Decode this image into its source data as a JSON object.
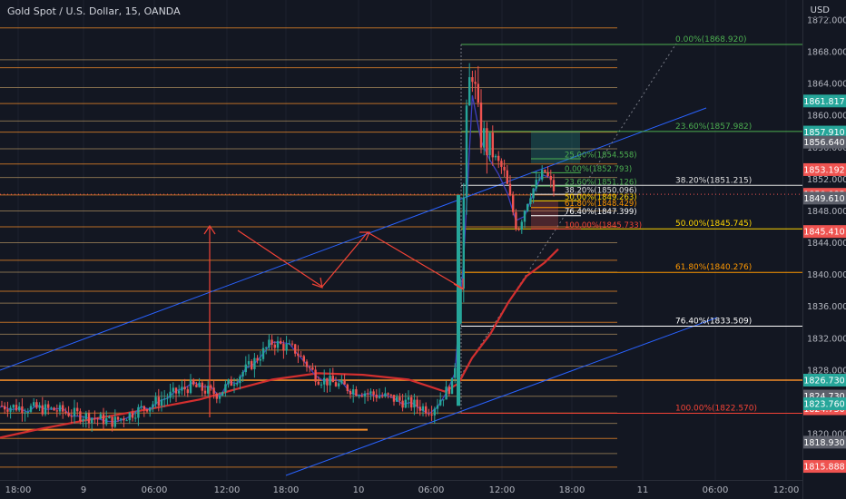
{
  "header": {
    "title": "Gold Spot / U.S. Dollar, 15, OANDA",
    "currency": "USD"
  },
  "colors": {
    "bg": "#131722",
    "grid": "#1e222d",
    "axis_text": "#b2b5be",
    "orange": "#f28c28",
    "tan": "#a78a5c",
    "green": "#26a69a",
    "red": "#ef5350",
    "blue_line": "#2962ff",
    "ema_red": "#d32f2f",
    "ema_blue": "#3f3fbf",
    "arrow": "#f44336",
    "fib_green": "#4caf50",
    "fib_yellow": "#ffd600",
    "fib_white": "#e0e0e0",
    "fib_red": "#f44336",
    "fib_orange": "#ff9800"
  },
  "chart_data": {
    "type": "candlestick",
    "title": "Gold Spot / U.S. Dollar, 15, OANDA",
    "ylabel": "USD",
    "ylim": [
      1814,
      1874
    ],
    "y_ticks": [
      1872.0,
      1868.0,
      1864.0,
      1860.0,
      1856.0,
      1852.0,
      1848.0,
      1844.0,
      1840.0,
      1836.0,
      1832.0,
      1828.0,
      1824.0,
      1820.0
    ],
    "x_tick_labels": [
      "18:00",
      "9",
      "06:00",
      "12:00",
      "18:00",
      "10",
      "06:00",
      "12:00",
      "18:00",
      "11",
      "06:00",
      "12:00"
    ],
    "price_tags": [
      {
        "label": "1861.817",
        "value": 1861.817,
        "color": "#26a69a"
      },
      {
        "label": "1857.910",
        "value": 1857.91,
        "color": "#26a69a"
      },
      {
        "label": "1856.640",
        "value": 1856.64,
        "color": "#5d606b"
      },
      {
        "label": "1853.192",
        "value": 1853.192,
        "color": "#ef5350"
      },
      {
        "label": "1850.085",
        "value": 1850.085,
        "color": "#ef5350"
      },
      {
        "label": "1849.610",
        "value": 1849.61,
        "color": "#5d606b"
      },
      {
        "label": "1845.410",
        "value": 1845.41,
        "color": "#ef5350"
      },
      {
        "label": "1826.730",
        "value": 1826.73,
        "color": "#26a69a"
      },
      {
        "label": "1824.730",
        "value": 1824.73,
        "color": "#5d606b"
      },
      {
        "label": "1824.730",
        "value": 1824.73,
        "color": "#ef5350"
      },
      {
        "label": "1823.760",
        "value": 1823.76,
        "color": "#26a69a"
      },
      {
        "label": "1818.930",
        "value": 1818.93,
        "color": "#5d606b"
      },
      {
        "label": "1815.888",
        "value": 1815.888,
        "color": "#ef5350"
      }
    ],
    "fib_large": [
      {
        "label": "0.00%(1868.920)",
        "value": 1868.92,
        "color": "#4caf50"
      },
      {
        "label": "23.60%(1857.982)",
        "value": 1857.982,
        "color": "#4caf50"
      },
      {
        "label": "38.20%(1851.215)",
        "value": 1851.215,
        "color": "#e0e0e0"
      },
      {
        "label": "50.00%(1845.745)",
        "value": 1845.745,
        "color": "#ffd600"
      },
      {
        "label": "61.80%(1840.276)",
        "value": 1840.276,
        "color": "#ff9800"
      },
      {
        "label": "76.40%(1833.509)",
        "value": 1833.509,
        "color": "#ffffff"
      },
      {
        "label": "100.00%(1822.570)",
        "value": 1822.57,
        "color": "#f44336"
      }
    ],
    "fib_small": [
      {
        "label": "25.00%(1854.558)",
        "value": 1854.558,
        "color": "#4caf50"
      },
      {
        "label": "0.00%(1852.793)",
        "value": 1852.793,
        "color": "#4caf50"
      },
      {
        "label": "23.60%(1851.126)",
        "value": 1851.126,
        "color": "#4caf50"
      },
      {
        "label": "38.20%(1850.096)",
        "value": 1850.096,
        "color": "#e0e0e0"
      },
      {
        "label": "50.00%(1849.263)",
        "value": 1849.263,
        "color": "#ffd600"
      },
      {
        "label": "61.80%(1848.429)",
        "value": 1848.429,
        "color": "#ff9800"
      },
      {
        "label": "76.40%(1847.399)",
        "value": 1847.399,
        "color": "#ffffff"
      },
      {
        "label": "100.00%(1845.733)",
        "value": 1845.733,
        "color": "#f44336"
      }
    ],
    "support_levels": [
      1871.0,
      1867.0,
      1866.0,
      1863.5,
      1861.5,
      1859.3,
      1857.9,
      1855.8,
      1853.9,
      1852.2,
      1850.0,
      1848.0,
      1846.0,
      1844.0,
      1841.8,
      1840.3,
      1837.9,
      1836.4,
      1834.0,
      1832.5,
      1830.5,
      1828.5,
      1826.7,
      1824.7,
      1822.6,
      1821.3,
      1819.4,
      1817.5,
      1815.8
    ],
    "ohlc_summary": {
      "start": 1823.5,
      "range_low": 1821.0,
      "range_high": 1833.0,
      "breakout_high": 1868.9,
      "last": 1850.085
    }
  }
}
